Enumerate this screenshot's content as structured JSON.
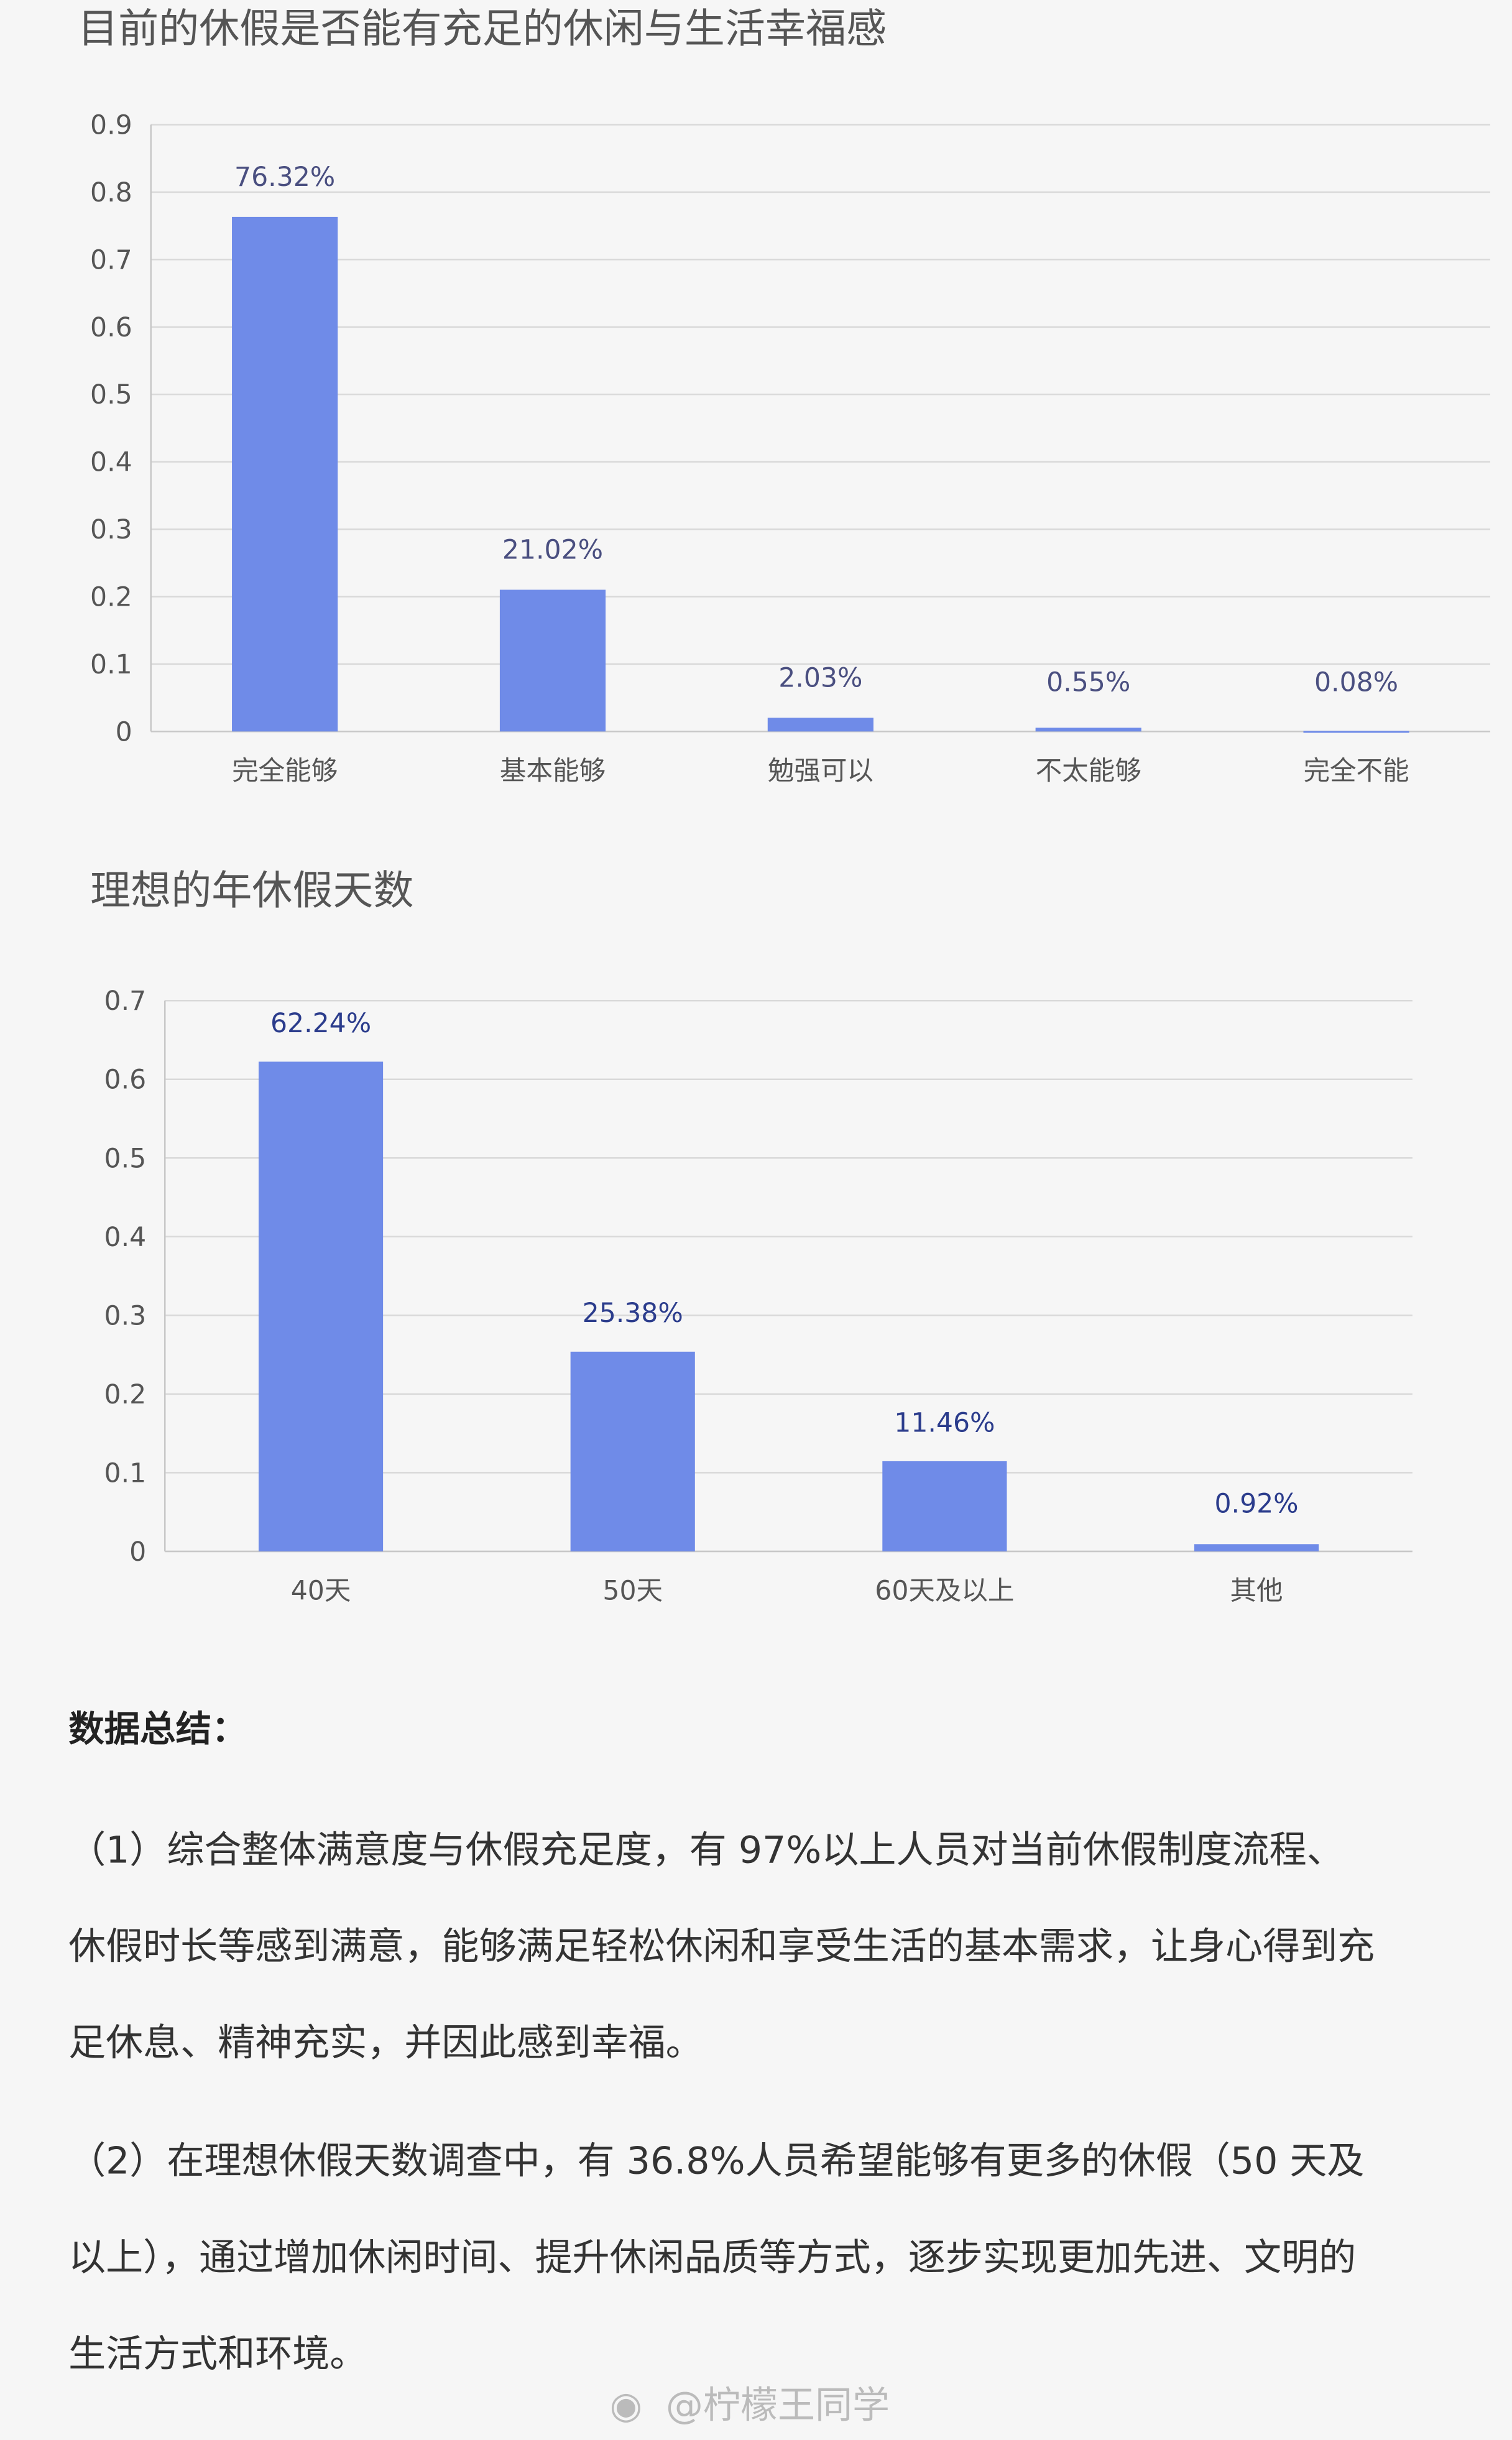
{
  "colors": {
    "bar": "#6f8be8",
    "label_chart1": "#4a4f80",
    "label_chart2": "#2b3c8c",
    "background": "#f6f6f6"
  },
  "chart_data": [
    {
      "type": "bar",
      "title": "目前的休假是否能有充足的休闲与生活幸福感",
      "categories": [
        "完全能够",
        "基本能够",
        "勉强可以",
        "不太能够",
        "完全不能"
      ],
      "values": [
        0.7632,
        0.2102,
        0.0203,
        0.0055,
        0.0008
      ],
      "data_labels": [
        "76.32%",
        "21.02%",
        "2.03%",
        "0.55%",
        "0.08%"
      ],
      "ylim": [
        0,
        0.9
      ],
      "yticks": [
        "0",
        "0.1",
        "0.2",
        "0.3",
        "0.4",
        "0.5",
        "0.6",
        "0.7",
        "0.8",
        "0.9"
      ],
      "grid": true,
      "xlabel": "",
      "ylabel": ""
    },
    {
      "type": "bar",
      "title": "理想的年休假天数",
      "categories": [
        "40天",
        "50天",
        "60天及以上",
        "其他"
      ],
      "values": [
        0.6224,
        0.2538,
        0.1146,
        0.0092
      ],
      "data_labels": [
        "62.24%",
        "25.38%",
        "11.46%",
        "0.92%"
      ],
      "ylim": [
        0,
        0.7
      ],
      "yticks": [
        "0",
        "0.1",
        "0.2",
        "0.3",
        "0.4",
        "0.5",
        "0.6",
        "0.7"
      ],
      "grid": true,
      "xlabel": "",
      "ylabel": ""
    }
  ],
  "summary": {
    "heading": "数据总结：",
    "paragraphs": [
      [
        "（1）综合整体满意度与休假充足度，有 97%以上人员对当前休假制度流程、",
        "休假时长等感到满意，能够满足轻松休闲和享受生活的基本需求，让身心得到充",
        "足休息、精神充实，并因此感到幸福。"
      ],
      [
        "（2）在理想休假天数调查中，有 36.8%人员希望能够有更多的休假（50 天及",
        "以上），通过增加休闲时间、提升休闲品质等方式，逐步实现更加先进、文明的",
        "生活方式和环境。"
      ]
    ]
  },
  "watermark": "@柠檬王同学"
}
